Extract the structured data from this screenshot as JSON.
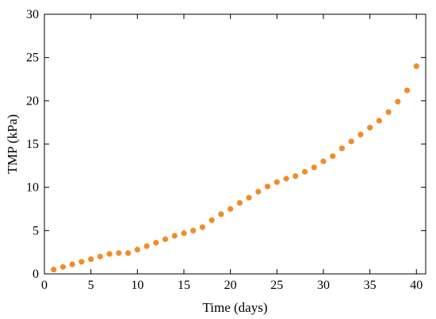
{
  "chart_data": {
    "type": "scatter",
    "xlabel": "Time (days)",
    "ylabel": "TMP (kPa)",
    "xlim": [
      0,
      41
    ],
    "ylim": [
      0,
      30
    ],
    "xticks": [
      0,
      5,
      10,
      15,
      20,
      25,
      30,
      35,
      40
    ],
    "yticks": [
      0,
      5,
      10,
      15,
      20,
      25,
      30
    ],
    "marker_color": "#F28C28",
    "grid": false,
    "series": [
      {
        "x": [
          1,
          2,
          3,
          4,
          5,
          6,
          7,
          8,
          9,
          10,
          11,
          12,
          13,
          14,
          15,
          16,
          17,
          18,
          19,
          20,
          21,
          22,
          23,
          24,
          25,
          26,
          27,
          28,
          29,
          30,
          31,
          32,
          33,
          34,
          35,
          36,
          37,
          38,
          39,
          40
        ],
        "y": [
          0.5,
          0.8,
          1.1,
          1.4,
          1.7,
          2.0,
          2.3,
          2.4,
          2.4,
          2.8,
          3.2,
          3.6,
          4.0,
          4.4,
          4.7,
          5.0,
          5.4,
          6.2,
          6.9,
          7.5,
          8.2,
          8.8,
          9.5,
          10.1,
          10.6,
          11.0,
          11.3,
          11.8,
          12.3,
          13.0,
          13.6,
          14.5,
          15.3,
          16.1,
          16.9,
          17.7,
          18.7,
          19.9,
          21.2,
          24.0
        ]
      }
    ]
  }
}
